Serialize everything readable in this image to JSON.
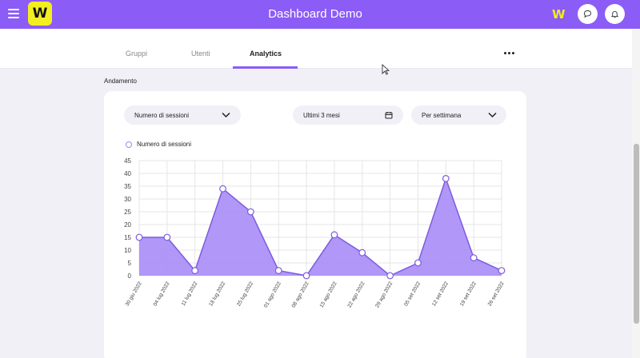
{
  "header": {
    "title": "Dashboard Demo",
    "logo_letter": "W",
    "brand_letter": "W",
    "accent_color": "#8b5cf6",
    "logo_color": "#f2ee1f"
  },
  "tabs": [
    {
      "label": "Gruppi",
      "active": false
    },
    {
      "label": "Utenti",
      "active": false
    },
    {
      "label": "Analytics",
      "active": true
    }
  ],
  "section": {
    "title": "Andamento"
  },
  "filters": {
    "metric": "Numero di sessioni",
    "period": "Ultimi 3 mesi",
    "granularity": "Per settimana"
  },
  "icons": {
    "menu": "hamburger-icon",
    "chat": "chat-bubble-icon",
    "notifications": "bell-icon",
    "more": "more-horizontal-icon",
    "calendar": "calendar-icon",
    "dropdown": "chevron-down-icon"
  },
  "chart_data": {
    "type": "area",
    "x": [
      "30 giu 2022",
      "04 lug 2022",
      "11 lug 2022",
      "18 lug 2022",
      "25 lug 2022",
      "01 ago 2022",
      "08 ago 2022",
      "15 ago 2022",
      "22 ago 2022",
      "29 ago 2022",
      "05 set 2022",
      "12 set 2022",
      "19 set 2022",
      "26 set 2022"
    ],
    "series": [
      {
        "name": "Numero di sessioni",
        "values": [
          15,
          15,
          2,
          34,
          25,
          2,
          0,
          16,
          9,
          0,
          5,
          38,
          7,
          2
        ]
      }
    ],
    "yticks": [
      0,
      5,
      10,
      15,
      20,
      25,
      30,
      35,
      40,
      45
    ],
    "ylim": [
      0,
      45
    ],
    "grid": true,
    "legend": "top-left",
    "fill_color": "#a98cf6",
    "line_color": "#7c5ce0"
  }
}
